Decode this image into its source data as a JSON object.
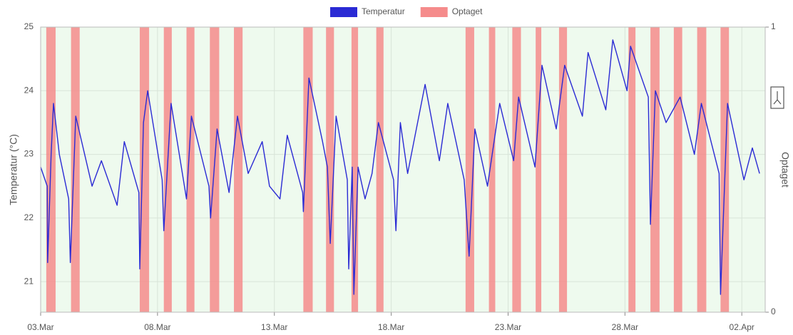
{
  "chart_data": {
    "type": "line",
    "legend": "top",
    "grid": true,
    "background": "#eefaee",
    "y_label": "Temperatur (°C)",
    "y2_label": "Optaget",
    "xlim": [
      3,
      34
    ],
    "xticks": [
      {
        "value": 3,
        "label": "03.Mar"
      },
      {
        "value": 8,
        "label": "08.Mar"
      },
      {
        "value": 13,
        "label": "13.Mar"
      },
      {
        "value": 18,
        "label": "18.Mar"
      },
      {
        "value": 23,
        "label": "23.Mar"
      },
      {
        "value": 28,
        "label": "28.Mar"
      },
      {
        "value": 33,
        "label": "02.Apr"
      }
    ],
    "ylim": [
      20.52,
      25
    ],
    "yticks": [
      21,
      22,
      23,
      24,
      25
    ],
    "y2lim": [
      0,
      1
    ],
    "y2ticks": [
      0,
      1
    ],
    "series": [
      {
        "name": "Temperatur",
        "type": "line",
        "color": "#2a2ad4",
        "x": [
          3.0,
          3.28,
          3.3,
          3.45,
          3.55,
          3.8,
          4.2,
          4.27,
          4.5,
          5.2,
          5.6,
          6.27,
          6.58,
          7.2,
          7.24,
          7.4,
          7.58,
          8.2,
          8.27,
          8.58,
          9.24,
          9.45,
          10.2,
          10.27,
          10.55,
          11.06,
          11.42,
          11.88,
          12.48,
          12.79,
          13.24,
          13.55,
          14.21,
          14.24,
          14.48,
          15.06,
          15.27,
          15.39,
          15.64,
          16.12,
          16.18,
          16.33,
          16.4,
          16.58,
          16.88,
          17.18,
          17.45,
          18.1,
          18.2,
          18.39,
          18.7,
          19.45,
          20.06,
          20.42,
          21.12,
          21.33,
          21.58,
          22.12,
          22.64,
          23.24,
          23.45,
          24.15,
          24.45,
          25.06,
          25.42,
          26.18,
          26.42,
          27.18,
          27.48,
          28.09,
          28.24,
          29.0,
          29.09,
          29.3,
          29.76,
          30.36,
          30.97,
          31.27,
          32.03,
          32.09,
          32.39,
          33.09,
          33.45,
          33.76
        ],
        "values": [
          22.8,
          22.5,
          21.3,
          23.0,
          23.8,
          23.0,
          22.3,
          21.3,
          23.6,
          22.5,
          22.9,
          22.2,
          23.2,
          22.4,
          21.2,
          23.5,
          24.0,
          22.6,
          21.8,
          23.8,
          22.3,
          23.6,
          22.5,
          22.0,
          23.4,
          22.4,
          23.6,
          22.7,
          23.2,
          22.5,
          22.3,
          23.3,
          22.4,
          22.1,
          24.2,
          23.2,
          22.8,
          21.6,
          23.6,
          22.6,
          21.2,
          22.8,
          20.8,
          22.8,
          22.3,
          22.7,
          23.5,
          22.6,
          21.8,
          23.5,
          22.7,
          24.1,
          22.9,
          23.8,
          22.6,
          21.4,
          23.4,
          22.5,
          23.8,
          22.9,
          23.9,
          22.8,
          24.4,
          23.4,
          24.4,
          23.6,
          24.6,
          23.7,
          24.8,
          24.0,
          24.7,
          23.9,
          21.9,
          24.0,
          23.5,
          23.9,
          23.0,
          23.8,
          22.7,
          20.8,
          23.8,
          22.6,
          23.1,
          22.7
        ]
      },
      {
        "name": "Optaget",
        "type": "band",
        "axis": "y2",
        "color": "#f58b8b",
        "x": [
          3.0,
          3.24,
          3.64,
          4.3,
          4.67,
          7.24,
          7.64,
          8.27,
          8.61,
          9.24,
          9.58,
          10.24,
          10.64,
          11.27,
          11.64,
          14.24,
          14.64,
          15.21,
          15.55,
          16.3,
          16.58,
          17.36,
          17.67,
          21.18,
          21.55,
          22.18,
          22.45,
          23.18,
          23.55,
          24.18,
          24.42,
          25.18,
          25.52,
          28.15,
          28.45,
          29.09,
          29.48,
          30.09,
          30.45,
          31.09,
          31.48,
          32.09,
          32.45
        ],
        "values": [
          0,
          1,
          0,
          1,
          0,
          1,
          0,
          1,
          0,
          1,
          0,
          1,
          0,
          1,
          0,
          1,
          0,
          1,
          0,
          1,
          0,
          1,
          0,
          1,
          0,
          1,
          0,
          1,
          0,
          1,
          0,
          1,
          0,
          1,
          0,
          1,
          0,
          1,
          0,
          1,
          0,
          1,
          0
        ]
      }
    ]
  }
}
